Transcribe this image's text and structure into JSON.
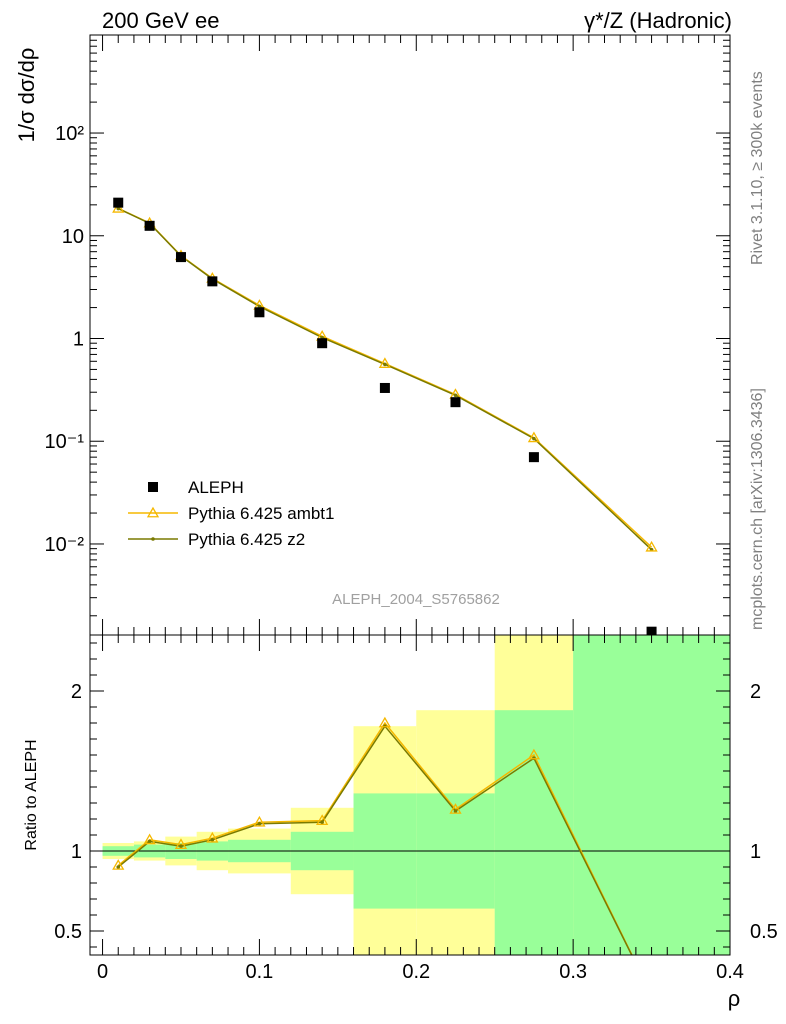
{
  "header": {
    "left_title": "200 GeV ee",
    "right_title": "γ*/Z (Hadronic)"
  },
  "side_labels": {
    "rivet": "Rivet 3.1.10, ≥ 300k events",
    "mcplots": "mcplots.cern.ch [arXiv:1306.3436]"
  },
  "colors": {
    "ambt1": "#f5b800",
    "z2": "#7a7a00",
    "band_inner": "#99ff99",
    "band_outer": "#ffff99",
    "data": "#000000"
  },
  "chart_data": [
    {
      "type": "scatter",
      "title": "",
      "ylabel": "1/σ dσ/dρ",
      "xlabel": "ρ",
      "yscale": "log",
      "ylim": [
        0.0013,
        900
      ],
      "xlim": [
        -0.008,
        0.4
      ],
      "yticks": [
        {
          "value": 100,
          "label": "10²"
        },
        {
          "value": 10,
          "label": "10"
        },
        {
          "value": 1,
          "label": "1"
        },
        {
          "value": 0.1,
          "label": "10⁻¹"
        },
        {
          "value": 0.01,
          "label": "10⁻²"
        }
      ],
      "annotation": "ALEPH_2004_S5765862",
      "legend_position": "bottom-left",
      "x": [
        0.01,
        0.03,
        0.05,
        0.07,
        0.1,
        0.14,
        0.18,
        0.225,
        0.275,
        0.35
      ],
      "series": [
        {
          "name": "ALEPH",
          "marker": "square",
          "values": [
            21,
            12.5,
            6.2,
            3.6,
            1.8,
            0.9,
            0.33,
            0.24,
            0.07,
            0.0014
          ]
        },
        {
          "name": "Pythia 6.425 ambt1",
          "marker": "triangle",
          "values": [
            18.5,
            13.3,
            6.4,
            3.85,
            2.1,
            1.05,
            0.57,
            0.285,
            0.108,
            0.0093
          ]
        },
        {
          "name": "Pythia 6.425 z2",
          "marker": "dot",
          "values": [
            18.4,
            13.2,
            6.35,
            3.8,
            2.05,
            1.02,
            0.56,
            0.28,
            0.106,
            0.0088
          ]
        }
      ]
    },
    {
      "type": "line",
      "ylabel": "Ratio to ALEPH",
      "xlabel": "ρ",
      "ylim": [
        0.35,
        2.35
      ],
      "xlim": [
        -0.008,
        0.4
      ],
      "yticks": [
        {
          "value": 2,
          "label": "2"
        },
        {
          "value": 1,
          "label": "1"
        },
        {
          "value": 0.5,
          "label": "0.5"
        }
      ],
      "xticks": [
        {
          "value": 0,
          "label": "0"
        },
        {
          "value": 0.1,
          "label": "0.1"
        },
        {
          "value": 0.2,
          "label": "0.2"
        },
        {
          "value": 0.3,
          "label": "0.3"
        },
        {
          "value": 0.4,
          "label": "0.4"
        }
      ],
      "x": [
        0.01,
        0.03,
        0.05,
        0.07,
        0.1,
        0.14,
        0.18,
        0.225,
        0.275,
        0.35
      ],
      "bins": [
        {
          "lo": 0.0,
          "hi": 0.02,
          "inner": [
            0.97,
            1.03
          ],
          "outer": [
            0.95,
            1.05
          ]
        },
        {
          "lo": 0.02,
          "hi": 0.04,
          "inner": [
            0.96,
            1.04
          ],
          "outer": [
            0.94,
            1.06
          ]
        },
        {
          "lo": 0.04,
          "hi": 0.06,
          "inner": [
            0.95,
            1.05
          ],
          "outer": [
            0.91,
            1.09
          ]
        },
        {
          "lo": 0.06,
          "hi": 0.08,
          "inner": [
            0.94,
            1.06
          ],
          "outer": [
            0.88,
            1.12
          ]
        },
        {
          "lo": 0.08,
          "hi": 0.12,
          "inner": [
            0.93,
            1.07
          ],
          "outer": [
            0.86,
            1.14
          ]
        },
        {
          "lo": 0.12,
          "hi": 0.16,
          "inner": [
            0.88,
            1.12
          ],
          "outer": [
            0.73,
            1.27
          ]
        },
        {
          "lo": 0.16,
          "hi": 0.2,
          "inner": [
            0.64,
            1.36
          ],
          "outer": [
            0.35,
            1.78
          ]
        },
        {
          "lo": 0.2,
          "hi": 0.25,
          "inner": [
            0.64,
            1.36
          ],
          "outer": [
            0.35,
            1.88
          ]
        },
        {
          "lo": 0.25,
          "hi": 0.3,
          "inner": [
            0.35,
            1.88
          ],
          "outer": [
            0.35,
            2.35
          ]
        },
        {
          "lo": 0.3,
          "hi": 0.4,
          "inner": [
            0.35,
            2.35
          ],
          "outer": [
            0.35,
            2.35
          ]
        }
      ],
      "series": [
        {
          "name": "Pythia 6.425 ambt1",
          "marker": "triangle",
          "values": [
            0.91,
            1.07,
            1.04,
            1.08,
            1.18,
            1.19,
            1.8,
            1.26,
            1.6,
            0.1
          ]
        },
        {
          "name": "Pythia 6.425 z2",
          "marker": "dot",
          "values": [
            0.9,
            1.06,
            1.03,
            1.07,
            1.17,
            1.18,
            1.78,
            1.25,
            1.58,
            0.1
          ]
        }
      ]
    }
  ]
}
